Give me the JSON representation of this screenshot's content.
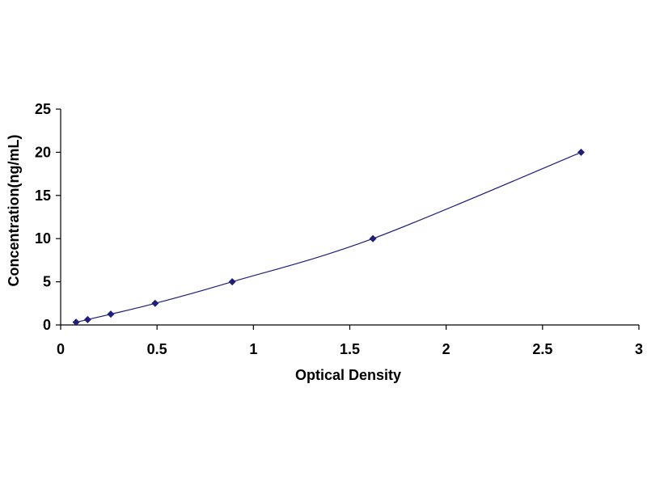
{
  "chart_data": {
    "type": "scatter",
    "title": "",
    "xlabel": "Optical Density",
    "ylabel": "Concentration(ng/mL)",
    "xlim": [
      0,
      3
    ],
    "ylim": [
      0,
      25
    ],
    "x_ticks": [
      "0",
      "0.5",
      "1",
      "1.5",
      "2",
      "2.5",
      "3"
    ],
    "y_ticks": [
      "0",
      "5",
      "10",
      "15",
      "20",
      "25"
    ],
    "grid": false,
    "legend": "none",
    "series": [
      {
        "x": [
          0.08,
          0.14,
          0.26,
          0.49,
          0.89,
          1.62,
          2.7
        ],
        "y": [
          0.3125,
          0.625,
          1.25,
          2.5,
          5,
          10,
          20
        ],
        "marker": "diamond",
        "trendline": "smooth curve"
      }
    ],
    "colors": {
      "series": "#1f1f7a",
      "axis": "#000000"
    }
  }
}
